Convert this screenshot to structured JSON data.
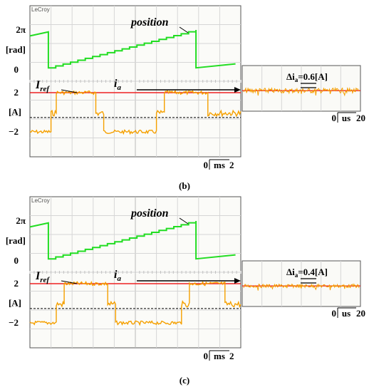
{
  "colors": {
    "position": "#22dd22",
    "current": "#f5a000",
    "iref": "#ee2222",
    "grid": "#d6d6d6",
    "frame": "#555555"
  },
  "chart_data": [
    {
      "type": "line",
      "caption": "(b)",
      "scope_brand": "LeCroy",
      "time_scale": {
        "zero": "0",
        "unit": "ms",
        "value": "2"
      },
      "position_axis": {
        "labels": [
          "2π",
          "[rad]",
          "0"
        ],
        "series_label": "position"
      },
      "current_axis": {
        "labels": [
          "2",
          "[A]",
          "−2"
        ],
        "ref_label": "ref",
        "ref_main": "I",
        "ia_main": "i",
        "ia_sub": "a"
      },
      "iref_value": 2,
      "position_series": {
        "name": "position",
        "x": [
          0,
          1.4,
          1.4,
          12.6,
          12.6,
          15.6
        ],
        "y_frac": [
          0.85,
          0.95,
          0.05,
          1.0,
          0.05,
          0.15
        ]
      },
      "current_series": {
        "name": "i_a",
        "x": [
          0,
          1.6,
          1.6,
          2.0,
          2.0,
          5.0,
          5.0,
          5.6,
          5.6,
          9.6,
          9.6,
          10.2,
          10.2,
          13.5,
          13.5,
          16
        ],
        "y": [
          -2.0,
          -2.0,
          -0.1,
          -0.1,
          2.0,
          2.0,
          -0.1,
          -0.1,
          -2.0,
          -2.0,
          -0.1,
          -0.1,
          2.0,
          2.0,
          -0.1,
          -0.1
        ]
      },
      "zoom": {
        "label": "Δi",
        "sub": "a",
        "value": "=0.6[A]",
        "time": {
          "zero": "0",
          "unit": "us",
          "value": "20"
        }
      }
    },
    {
      "type": "line",
      "caption": "(c)",
      "scope_brand": "LeCroy",
      "time_scale": {
        "zero": "0",
        "unit": "ms",
        "value": "2"
      },
      "position_axis": {
        "labels": [
          "2π",
          "[rad]",
          "0"
        ],
        "series_label": "position"
      },
      "current_axis": {
        "labels": [
          "2",
          "[A]",
          "−2"
        ],
        "ref_label": "ref",
        "ref_main": "I",
        "ia_main": "i",
        "ia_sub": "a"
      },
      "iref_value": 2,
      "position_series": {
        "name": "position",
        "x": [
          0,
          1.4,
          1.4,
          12.6,
          12.6,
          15.6
        ],
        "y_frac": [
          0.85,
          0.95,
          0.05,
          1.0,
          0.05,
          0.15
        ]
      },
      "current_series": {
        "name": "i_a",
        "x": [
          0,
          2.0,
          2.0,
          2.6,
          2.6,
          5.9,
          5.9,
          6.5,
          6.5,
          11.5,
          11.5,
          12.1,
          12.1,
          14.8,
          14.8,
          16
        ],
        "y": [
          -2.0,
          -2.0,
          -0.1,
          -0.1,
          2.0,
          2.0,
          -0.1,
          -0.1,
          -2.0,
          -2.0,
          -0.1,
          -0.1,
          2.0,
          2.0,
          -0.1,
          -0.1
        ]
      },
      "zoom": {
        "label": "Δi",
        "sub": "a",
        "value": "=0.4[A]",
        "time": {
          "zero": "0",
          "unit": "us",
          "value": "20"
        }
      }
    }
  ]
}
